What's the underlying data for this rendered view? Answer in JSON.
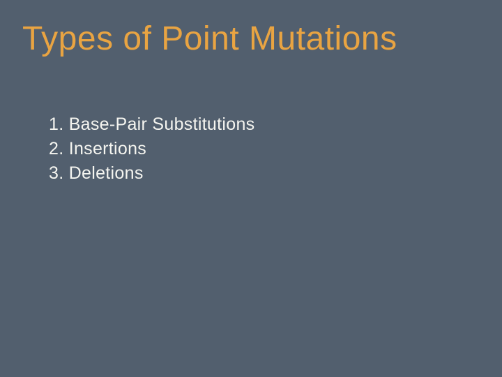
{
  "slide": {
    "title": "Types of Point Mutations",
    "items": [
      "1. Base-Pair Substitutions",
      "2. Insertions",
      "3. Deletions"
    ],
    "style": {
      "background_color": "#525f6e",
      "title_color": "#e9a442",
      "title_fontsize": 48,
      "body_color": "#f5f5f0",
      "body_fontsize": 25,
      "font_family": "Arial"
    }
  }
}
